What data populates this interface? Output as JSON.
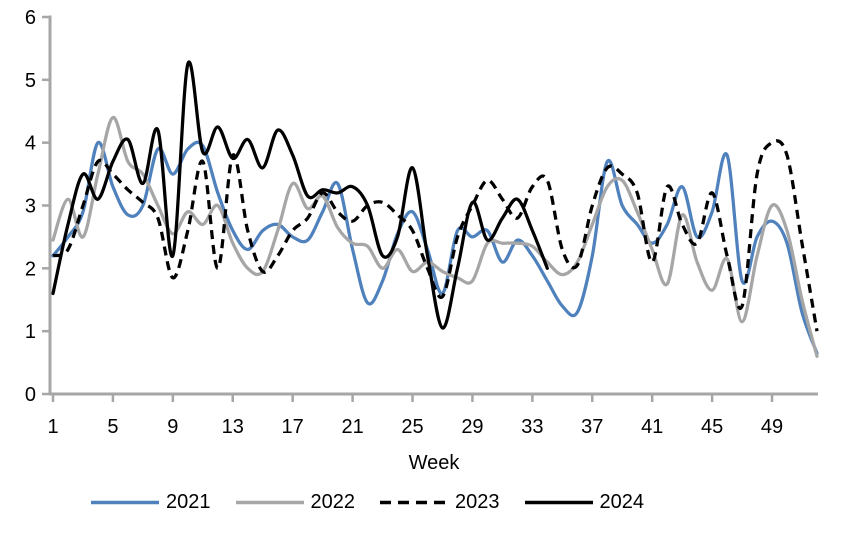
{
  "chart_data": {
    "type": "line",
    "title": "",
    "xlabel": "Week",
    "ylabel": "",
    "xlim": [
      1,
      52
    ],
    "ylim": [
      0,
      6
    ],
    "x_ticks": [
      1,
      5,
      9,
      13,
      17,
      21,
      25,
      29,
      33,
      37,
      41,
      45,
      49
    ],
    "y_ticks": [
      0,
      1,
      2,
      3,
      4,
      5,
      6
    ],
    "grid": "off",
    "legend_position": "bottom",
    "axis_color": "#A6A6A6",
    "smoothed": true,
    "series": [
      {
        "name": "2021",
        "color": "#4F81BD",
        "dash": "solid",
        "start_week": 1,
        "values": [
          2.2,
          2.5,
          2.9,
          4.0,
          3.3,
          2.85,
          3.0,
          3.9,
          3.5,
          3.9,
          3.95,
          3.2,
          2.6,
          2.3,
          2.6,
          2.7,
          2.5,
          2.45,
          2.9,
          3.35,
          2.3,
          1.45,
          1.8,
          2.55,
          2.9,
          2.3,
          1.6,
          2.6,
          2.5,
          2.6,
          2.1,
          2.45,
          2.2,
          1.8,
          1.4,
          1.3,
          2.2,
          3.7,
          3.0,
          2.7,
          2.4,
          2.7,
          3.3,
          2.5,
          2.9,
          3.8,
          1.8,
          2.5,
          2.75,
          2.4,
          1.3,
          0.65
        ]
      },
      {
        "name": "2022",
        "color": "#A6A6A6",
        "dash": "solid",
        "start_week": 1,
        "values": [
          2.45,
          3.1,
          2.5,
          3.5,
          4.4,
          3.7,
          3.5,
          3.0,
          2.55,
          2.9,
          2.7,
          3.0,
          2.4,
          2.0,
          1.95,
          2.6,
          3.35,
          2.95,
          3.15,
          2.65,
          2.4,
          2.35,
          2.0,
          2.3,
          1.95,
          2.1,
          1.95,
          1.85,
          1.8,
          2.4,
          2.4,
          2.4,
          2.35,
          2.1,
          1.9,
          2.1,
          2.7,
          3.3,
          3.4,
          2.9,
          2.3,
          1.75,
          2.85,
          2.1,
          1.65,
          2.15,
          1.15,
          2.2,
          3.0,
          2.6,
          1.5,
          0.6
        ]
      },
      {
        "name": "2023",
        "color": "#000000",
        "dash": "dashed",
        "start_week": 1,
        "values": [
          2.2,
          2.3,
          3.0,
          3.7,
          3.5,
          3.25,
          3.05,
          2.8,
          1.85,
          2.6,
          3.7,
          2.0,
          3.8,
          2.6,
          1.95,
          2.2,
          2.6,
          2.8,
          3.2,
          2.9,
          2.75,
          3.0,
          3.05,
          2.85,
          2.6,
          2.0,
          1.55,
          2.5,
          3.0,
          3.4,
          3.1,
          2.8,
          3.3,
          3.4,
          2.3,
          2.05,
          3.0,
          3.6,
          3.5,
          3.2,
          2.1,
          3.3,
          2.7,
          2.4,
          3.2,
          2.2,
          1.4,
          3.5,
          4.0,
          3.8,
          2.4,
          1.0
        ]
      },
      {
        "name": "2024",
        "color": "#000000",
        "dash": "solid",
        "start_week": 1,
        "values": [
          1.6,
          2.7,
          3.5,
          3.1,
          3.7,
          4.05,
          3.35,
          4.2,
          2.2,
          5.25,
          3.85,
          4.25,
          3.75,
          4.05,
          3.6,
          4.2,
          3.8,
          3.15,
          3.25,
          3.2,
          3.3,
          3.0,
          2.2,
          2.5,
          3.6,
          2.2,
          1.05,
          2.0,
          3.05,
          2.45,
          2.8,
          3.1,
          2.6,
          2.0
        ]
      }
    ]
  }
}
